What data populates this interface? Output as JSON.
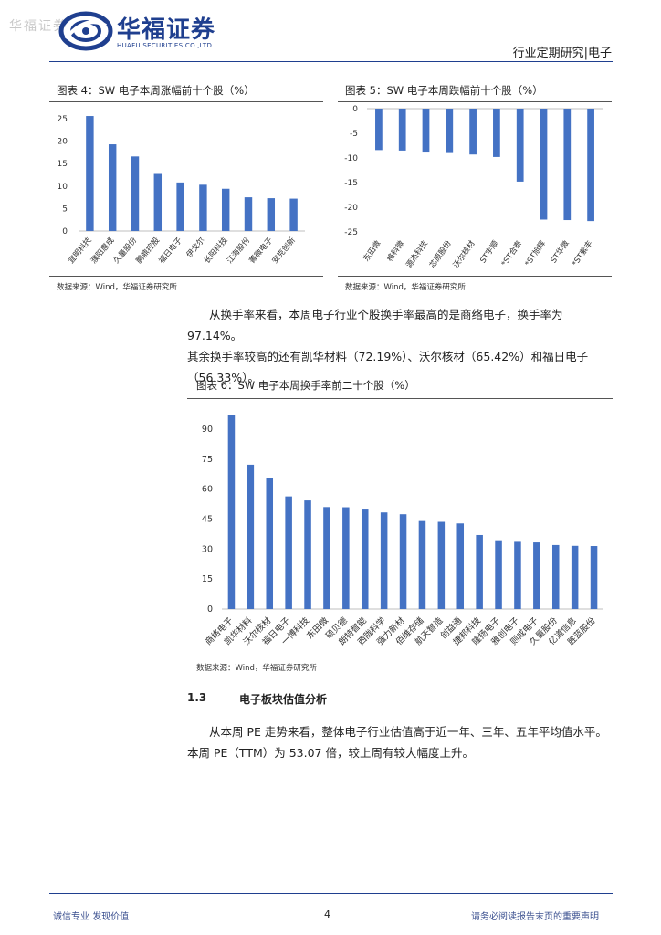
{
  "header": {
    "watermark": "华福证券",
    "logo_cn": "华福证券",
    "logo_en": "HUAFU SECURITIES CO.,LTD.",
    "report_type": "行业定期研究|电子"
  },
  "figure4": {
    "title": "图表 4：SW 电子本周涨幅前十个股（%）",
    "source": "数据来源：Wind，华福证券研究所",
    "chart_data": {
      "type": "bar",
      "title": "图表 4：SW 电子本周涨幅前十个股（%）",
      "categories": [
        "宜明科技",
        "濮阳惠成",
        "久量股份",
        "鹏鼎控股",
        "福日电子",
        "伊戈尔",
        "长阳科技",
        "江海股份",
        "菁微电子",
        "安克创新"
      ],
      "values": [
        25.6,
        19.3,
        16.6,
        12.7,
        10.8,
        10.3,
        9.4,
        7.5,
        7.3,
        7.2
      ],
      "ylim": [
        0,
        25
      ],
      "yticks": [
        0,
        5,
        10,
        15,
        20,
        25
      ],
      "color": "#4472c4"
    }
  },
  "figure5": {
    "title": "图表 5：SW 电子本周跌幅前十个股（%）",
    "source": "数据来源：Wind，华福证券研究所",
    "chart_data": {
      "type": "bar",
      "title": "图表 5：SW 电子本周跌幅前十个股（%）",
      "categories": [
        "东田微",
        "格科微",
        "源杰科技",
        "芯原股份",
        "沃尔核材",
        "ST宇顺",
        "*ST合泰",
        "*ST旭辉",
        "ST华微",
        "*ST紫丰"
      ],
      "values": [
        -8.4,
        -8.5,
        -8.9,
        -9.0,
        -9.3,
        -9.8,
        -14.8,
        -22.5,
        -22.6,
        -22.8
      ],
      "ylim": [
        -25,
        0
      ],
      "yticks": [
        0,
        -5,
        -10,
        -15,
        -20,
        -25
      ],
      "color": "#4472c4"
    }
  },
  "paragraph1": "从换手率来看，本周电子行业个股换手率最高的是商络电子，换手率为 97.14%。其余换手率较高的还有凯华材料（72.19%）、沃尔核材（65.42%）和福日电子（56.33%）。",
  "paragraph1_lines": [
    "从换手率来看，本周电子行业个股换手率最高的是商络电子，换手率为 97.14%。",
    "其余换手率较高的还有凯华材料（72.19%）、沃尔核材（65.42%）和福日电子",
    "（56.33%）。"
  ],
  "figure6": {
    "title": "图表 6：SW 电子本周换手率前二十个股（%）",
    "source": "数据来源：Wind，华福证券研究所",
    "chart_data": {
      "type": "bar",
      "title": "图表 6：SW 电子本周换手率前二十个股（%）",
      "categories": [
        "商络电子",
        "凯华材料",
        "沃尔核材",
        "福日电子",
        "一博科技",
        "东田微",
        "硕贝德",
        "朗特智能",
        "西陇科学",
        "强力新材",
        "佰维存储",
        "航天智造",
        "创益通",
        "捷邦科技",
        "隆扬电子",
        "雅创电子",
        "则成电子",
        "久量股份",
        "亿道信息",
        "胜蓝股份"
      ],
      "values": [
        97.14,
        72.19,
        65.42,
        56.33,
        54.3,
        51.0,
        50.9,
        50.2,
        48.3,
        47.4,
        44.0,
        43.6,
        42.8,
        37.0,
        34.4,
        33.6,
        33.3,
        32.0,
        31.6,
        31.5
      ],
      "ylim": [
        0,
        100
      ],
      "yticks": [
        0,
        15,
        30,
        45,
        60,
        75,
        90
      ],
      "color": "#4472c4"
    }
  },
  "section": {
    "number": "1.3",
    "title": "电子板块估值分析"
  },
  "paragraph2": "从本周 PE 走势来看，整体电子行业估值高于近一年、三年、五年平均值水平。本周 PE（TTM）为 53.07 倍，较上周有较大幅度上升。",
  "paragraph2_lines": [
    "从本周 PE 走势来看，整体电子行业估值高于近一年、三年、五年平均值水平。",
    "本周 PE（TTM）为 53.07 倍，较上周有较大幅度上升。"
  ],
  "footer": {
    "left": "诚信专业  发现价值",
    "page": "4",
    "right": "请务必阅读报告末页的重要声明"
  }
}
